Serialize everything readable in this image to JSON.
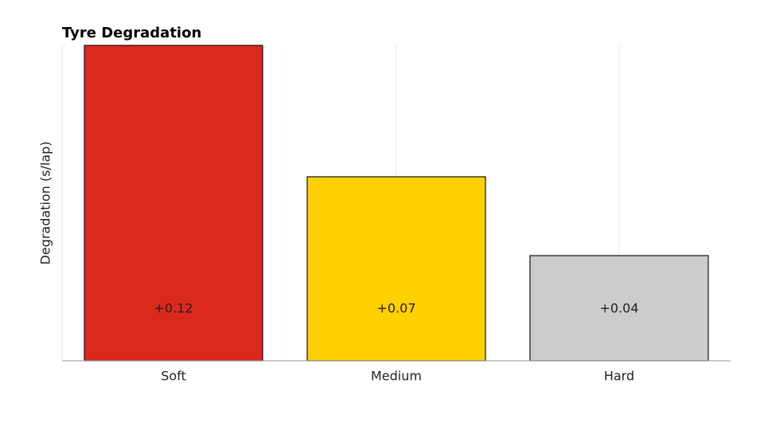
{
  "chart_data": {
    "type": "bar",
    "title": "Tyre Degradation",
    "y_label": "Degradation (s/lap)",
    "categories": [
      "Soft",
      "Medium",
      "Hard"
    ],
    "values": [
      0.12,
      0.07,
      0.04
    ],
    "value_labels": [
      "+0.12",
      "+0.07",
      "+0.04"
    ],
    "colors": [
      "#dc291e",
      "#ffd100",
      "#cccccc"
    ],
    "ylim": [
      0,
      0.12
    ],
    "grid": true
  }
}
